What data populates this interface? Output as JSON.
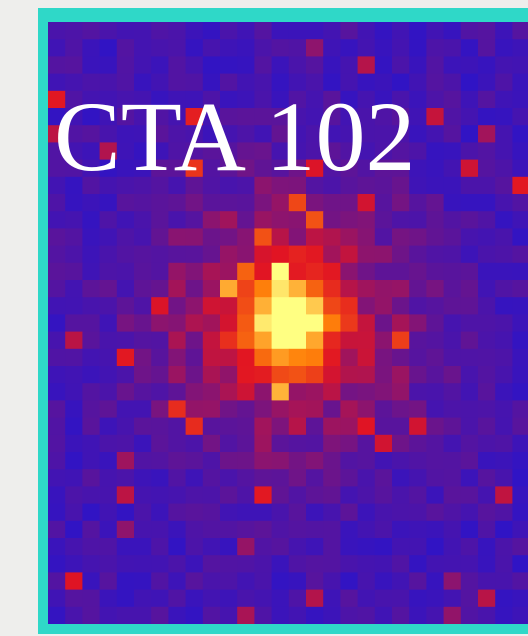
{
  "title": "CTA 102"
}
